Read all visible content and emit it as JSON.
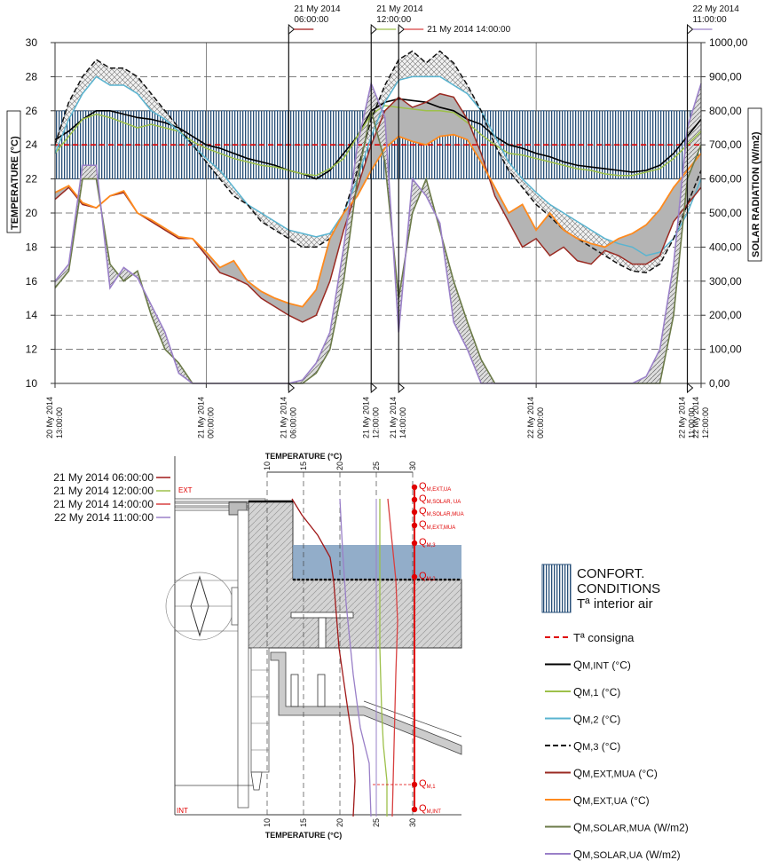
{
  "chart_data": [
    {
      "type": "line",
      "ylabel": "TEMPERATURE (°C)",
      "y2label": "SOLAR RADIATION (W/m2)",
      "ylim": [
        10,
        30
      ],
      "y2lim": [
        0,
        1000
      ],
      "xlim": [
        0,
        47
      ],
      "yticks": [
        "10",
        "12",
        "14",
        "16",
        "18",
        "20",
        "22",
        "24",
        "26",
        "28",
        "30"
      ],
      "y2ticks": [
        "0,00",
        "100,00",
        "200,00",
        "300,00",
        "400,00",
        "500,00",
        "600,00",
        "700,00",
        "800,00",
        "900,00",
        "1000,00"
      ],
      "xticks": [
        {
          "x": 0,
          "l1": "20 My 2014",
          "l2": "13:00:00"
        },
        {
          "x": 11,
          "l1": "21 My 2014",
          "l2": "00:00:00"
        },
        {
          "x": 17,
          "l1": "21 My 2014",
          "l2": "06:00:00"
        },
        {
          "x": 23,
          "l1": "21 My 2014",
          "l2": "12:00:00"
        },
        {
          "x": 25,
          "l1": "21 My 2014",
          "l2": "14:00:00"
        },
        {
          "x": 35,
          "l1": "22 My 2014",
          "l2": "00:00:00"
        },
        {
          "x": 46,
          "l1": "22 My 2014",
          "l2": "11:00:00"
        },
        {
          "x": 47,
          "l1": "22 My 2014",
          "l2": "12:00:00"
        }
      ],
      "comfort_band": [
        22,
        26
      ],
      "setpoint": 24,
      "markers": [
        {
          "x": 17,
          "date": "21 My 2014",
          "time": "06:00:00",
          "color": "#a01818"
        },
        {
          "x": 23,
          "date": "21 My 2014",
          "time": "12:00:00",
          "color": "#9dc04a"
        },
        {
          "x": 25,
          "date": "21 My 2014 14:00:00",
          "time": "",
          "color": "#d84040"
        },
        {
          "x": 46,
          "date": "22 My 2014",
          "time": "11:00:00",
          "color": "#9a80c8"
        }
      ],
      "series": [
        {
          "key": "int",
          "axis": "left",
          "color": "#000000",
          "dash": "",
          "width": 1.6,
          "values": [
            24.3,
            24.8,
            25.5,
            26,
            26,
            25.8,
            25.6,
            25.5,
            25.3,
            25,
            24.5,
            24,
            23.8,
            23.5,
            23.2,
            23,
            22.8,
            22.5,
            22.3,
            22,
            22.5,
            23.5,
            24.5,
            26,
            26.5,
            26.7,
            26.6,
            26.5,
            26.2,
            26,
            25.5,
            25.2,
            24.5,
            24,
            23.8,
            23.5,
            23.3,
            23,
            22.8,
            22.7,
            22.6,
            22.5,
            22.4,
            22.5,
            22.8,
            23.5,
            24.5,
            25.5
          ]
        },
        {
          "key": "m1",
          "axis": "left",
          "color": "#9dc04a",
          "dash": "",
          "width": 1.5,
          "values": [
            23.5,
            24.5,
            25.5,
            25.8,
            25.6,
            25.3,
            25,
            25.2,
            25,
            24.8,
            24.2,
            23.8,
            23.5,
            23.2,
            23,
            22.8,
            22.7,
            22.5,
            22.3,
            22.2,
            22.6,
            23.2,
            24.5,
            25.8,
            26.3,
            26.2,
            26.1,
            26,
            26,
            25.9,
            25.3,
            24.6,
            24,
            23.5,
            23.4,
            23.2,
            23,
            22.8,
            22.6,
            22.5,
            22.3,
            22.2,
            22.2,
            22.4,
            22.6,
            23.2,
            24,
            24.8
          ]
        },
        {
          "key": "m2",
          "axis": "left",
          "color": "#5ab4d0",
          "dash": "",
          "width": 1.5,
          "values": [
            23.5,
            25.5,
            27,
            28,
            27.5,
            27.5,
            27,
            26,
            25.5,
            24.8,
            24,
            23.2,
            22.5,
            21.5,
            20.5,
            20,
            19.5,
            19,
            18.8,
            18.6,
            18.8,
            20,
            22,
            24.5,
            26.5,
            27.8,
            28,
            28,
            28,
            27.5,
            27,
            26,
            24.5,
            23,
            22,
            21.2,
            20.5,
            20,
            19.5,
            19,
            18.5,
            18.2,
            18,
            17.5,
            17.7,
            18.5,
            20,
            22
          ]
        },
        {
          "key": "m3",
          "axis": "left",
          "color": "#111111",
          "dash": "6,3",
          "width": 1.5,
          "values": [
            24,
            26.5,
            28,
            29,
            28.5,
            28.5,
            28,
            27,
            26,
            25,
            24,
            23,
            22,
            21,
            20.5,
            19.5,
            19,
            18.5,
            18,
            18,
            18.5,
            20,
            22.5,
            25.5,
            27.5,
            29,
            29.5,
            28.8,
            29.5,
            28.8,
            27.5,
            26,
            24,
            22.5,
            21.5,
            20.5,
            19.8,
            19,
            18.5,
            18,
            17.5,
            17,
            16.6,
            16.5,
            17,
            18.5,
            20.5,
            22.5
          ]
        },
        {
          "key": "extmua",
          "axis": "left",
          "color": "#9a2a22",
          "dash": "",
          "width": 1.5,
          "values": [
            20.8,
            21.5,
            20.5,
            20.3,
            21,
            21.2,
            20,
            19.5,
            19,
            18.5,
            18.5,
            17.5,
            16.5,
            16.2,
            15.8,
            15,
            14.5,
            14,
            13.6,
            14,
            16,
            19,
            21.5,
            24,
            26,
            26.8,
            26.2,
            26.5,
            27,
            26.8,
            25.5,
            23.5,
            21,
            19.5,
            18,
            18.5,
            17.5,
            18,
            17.2,
            17,
            17.8,
            17.5,
            17,
            17,
            17.5,
            19.5,
            20.5,
            21.5
          ]
        },
        {
          "key": "extua",
          "axis": "left",
          "color": "#ff8a1e",
          "dash": "",
          "width": 1.8,
          "values": [
            21.2,
            21.6,
            20.6,
            20.3,
            21,
            21.3,
            20,
            19.6,
            19.1,
            18.6,
            18.5,
            17.7,
            16.8,
            17.2,
            16,
            15.4,
            15,
            14.7,
            14.5,
            15.5,
            18.5,
            20,
            21,
            22.5,
            23.8,
            24.5,
            24.2,
            24,
            24.5,
            24.6,
            24.3,
            23,
            21.5,
            20,
            20.5,
            19,
            20,
            19,
            18.5,
            18.2,
            18,
            18.5,
            18.8,
            19.3,
            20.2,
            21.5,
            22.5,
            23.5
          ]
        },
        {
          "key": "solmua",
          "axis": "right",
          "color": "#6b7a48",
          "dash": "",
          "width": 1.6,
          "values": [
            280,
            330,
            600,
            600,
            350,
            300,
            330,
            200,
            100,
            60,
            0,
            0,
            0,
            0,
            0,
            0,
            0,
            0,
            0,
            30,
            100,
            300,
            600,
            800,
            650,
            250,
            500,
            600,
            450,
            300,
            180,
            70,
            0,
            0,
            0,
            0,
            0,
            0,
            0,
            0,
            0,
            0,
            0,
            0,
            0,
            200,
            600,
            700
          ]
        },
        {
          "key": "solua",
          "axis": "right",
          "color": "#9a80c8",
          "dash": "",
          "width": 1.6,
          "values": [
            300,
            350,
            640,
            640,
            280,
            340,
            310,
            230,
            150,
            30,
            0,
            0,
            0,
            0,
            0,
            0,
            0,
            0,
            10,
            60,
            150,
            400,
            700,
            880,
            780,
            150,
            600,
            550,
            470,
            180,
            100,
            0,
            0,
            0,
            0,
            0,
            0,
            0,
            0,
            0,
            0,
            0,
            0,
            20,
            100,
            350,
            750,
            880
          ]
        }
      ]
    },
    {
      "type": "line",
      "title": "TEMPERATURE (°C)",
      "xlim": [
        10,
        30
      ],
      "xticks": [
        "10",
        "15",
        "20",
        "25",
        "30"
      ],
      "ext_label": "EXT",
      "int_label": "INT",
      "q_labels": [
        {
          "main": "Q",
          "sub": "M,EXT,UA"
        },
        {
          "main": "Q",
          "sub": "M,SOLAR, UA"
        },
        {
          "main": "Q",
          "sub": "M,SOLAR,MUA"
        },
        {
          "main": "Q",
          "sub": "M,EXT,MUA"
        },
        {
          "main": "Q",
          "sub": "M,3"
        },
        {
          "main": "Q",
          "sub": "M,2"
        },
        {
          "main": "Q",
          "sub": "M,1"
        },
        {
          "main": "Q",
          "sub": "M,INT"
        }
      ],
      "series": [
        {
          "name": "21 My 2014 06:00:00",
          "color": "#a01818"
        },
        {
          "name": "21 My 2014 12:00:00",
          "color": "#9dc04a"
        },
        {
          "name": "21 My 2014 14:00:00",
          "color": "#d84040"
        },
        {
          "name": "22 My 2014 11:00:00",
          "color": "#9a80c8"
        }
      ]
    }
  ],
  "legend": {
    "comfort_line1": "CONFORT.",
    "comfort_line2": "CONDITIONS",
    "interior_air": "Tª interior air",
    "items": [
      {
        "label": "Tª consigna",
        "main": "",
        "sub": "",
        "unit": "",
        "color": "#e00000",
        "dash": "6,4",
        "width": 2
      },
      {
        "label": "",
        "main": "Q",
        "sub": "M,INT",
        "unit": " (°C)",
        "color": "#000000",
        "dash": "",
        "width": 2
      },
      {
        "label": "",
        "main": "Q",
        "sub": "M,1",
        "unit": " (°C)",
        "color": "#9dc04a",
        "dash": "",
        "width": 2
      },
      {
        "label": "",
        "main": "Q",
        "sub": "M,2",
        "unit": " (°C)",
        "color": "#5ab4d0",
        "dash": "",
        "width": 2
      },
      {
        "label": "",
        "main": "Q",
        "sub": "M,3",
        "unit": " (°C)",
        "color": "#111111",
        "dash": "6,3",
        "width": 2
      },
      {
        "label": "",
        "main": "Q",
        "sub": "M,EXT,MUA",
        "unit": " (°C)",
        "color": "#9a2a22",
        "dash": "",
        "width": 2
      },
      {
        "label": "",
        "main": "Q",
        "sub": "M,EXT,UA",
        "unit": " (°C)",
        "color": "#ff8a1e",
        "dash": "",
        "width": 2
      },
      {
        "label": "",
        "main": "Q",
        "sub": "M,SOLAR,MUA",
        "unit": " (W/m2)",
        "color": "#6b7a48",
        "dash": "",
        "width": 2
      },
      {
        "label": "",
        "main": "Q",
        "sub": "M,SOLAR,UA",
        "unit": " (W/m2)",
        "color": "#9a80c8",
        "dash": "",
        "width": 2
      }
    ]
  }
}
